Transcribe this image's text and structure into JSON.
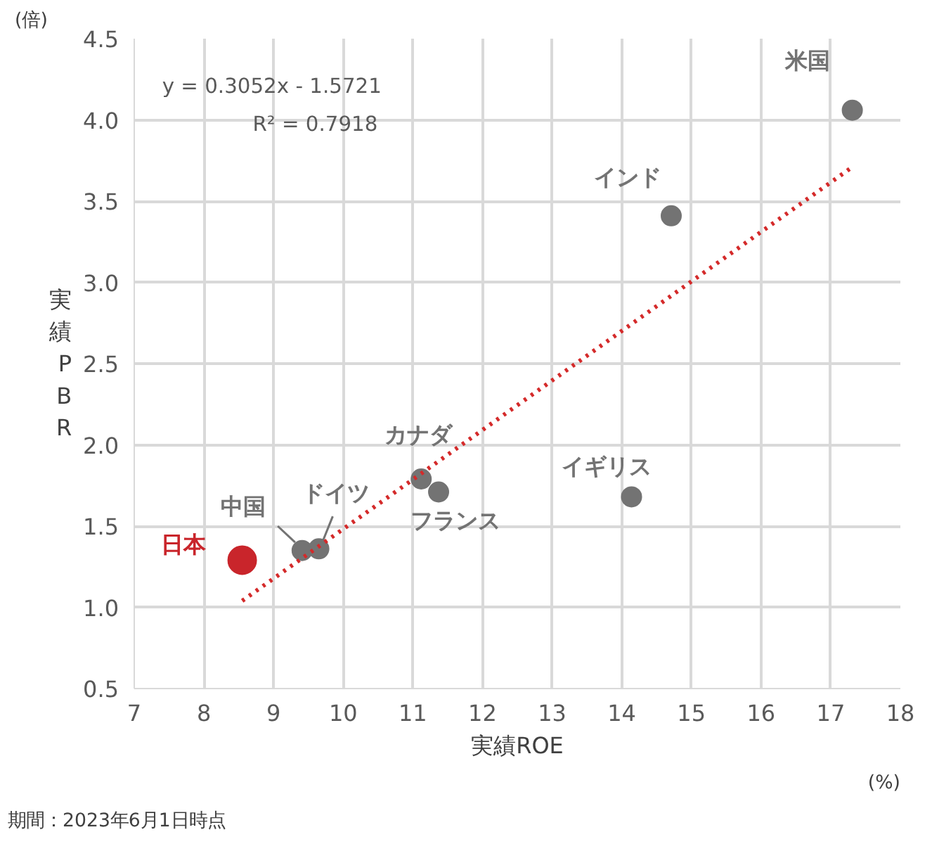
{
  "chart_data": {
    "type": "scatter",
    "xlabel": "実績ROE",
    "ylabel": "実績PBR",
    "xlim": [
      7,
      18
    ],
    "xticks": [
      7,
      8,
      9,
      10,
      11,
      12,
      13,
      14,
      15,
      16,
      17,
      18
    ],
    "ylim": [
      0.5,
      4.5
    ],
    "yticks": [
      {
        "value": 0.5,
        "label": "0.5"
      },
      {
        "value": 1.0,
        "label": "1.0"
      },
      {
        "value": 1.5,
        "label": "1.5"
      },
      {
        "value": 2.0,
        "label": "2.0"
      },
      {
        "value": 2.5,
        "label": "2.5"
      },
      {
        "value": 3.0,
        "label": "3.0"
      },
      {
        "value": 3.5,
        "label": "3.5"
      },
      {
        "value": 4.0,
        "label": "4.0"
      },
      {
        "value": 4.5,
        "label": "4.5"
      }
    ],
    "grid": true,
    "marker": "circle",
    "series": [
      {
        "name": "日本",
        "color": "#c9252b",
        "x": [
          8.55
        ],
        "values": [
          1.29
        ]
      },
      {
        "name": "中国",
        "color": "#737373",
        "x": [
          9.41
        ],
        "values": [
          1.35
        ]
      },
      {
        "name": "ドイツ",
        "color": "#737373",
        "x": [
          9.65
        ],
        "values": [
          1.36
        ]
      },
      {
        "name": "カナダ",
        "color": "#737373",
        "x": [
          11.12
        ],
        "values": [
          1.79
        ]
      },
      {
        "name": "フランス",
        "color": "#737373",
        "x": [
          11.37
        ],
        "values": [
          1.71
        ]
      },
      {
        "name": "イギリス",
        "color": "#737373",
        "x": [
          14.14
        ],
        "values": [
          1.68
        ]
      },
      {
        "name": "インド",
        "color": "#737373",
        "x": [
          14.71
        ],
        "values": [
          3.41
        ]
      },
      {
        "name": "米国",
        "color": "#737373",
        "x": [
          17.31
        ],
        "values": [
          4.06
        ]
      },
      {
        "type": "line",
        "color": "#d42a2a",
        "line_style": "dotted",
        "marker": "none",
        "x": [
          8.55,
          17.31
        ],
        "values": [
          1.04,
          3.71
        ]
      }
    ],
    "annotations": [
      "y = 0.3052x - 1.5721",
      "R² = 0.7918",
      "(倍)",
      "(%)",
      "期間：2023年6月1日時点"
    ]
  }
}
